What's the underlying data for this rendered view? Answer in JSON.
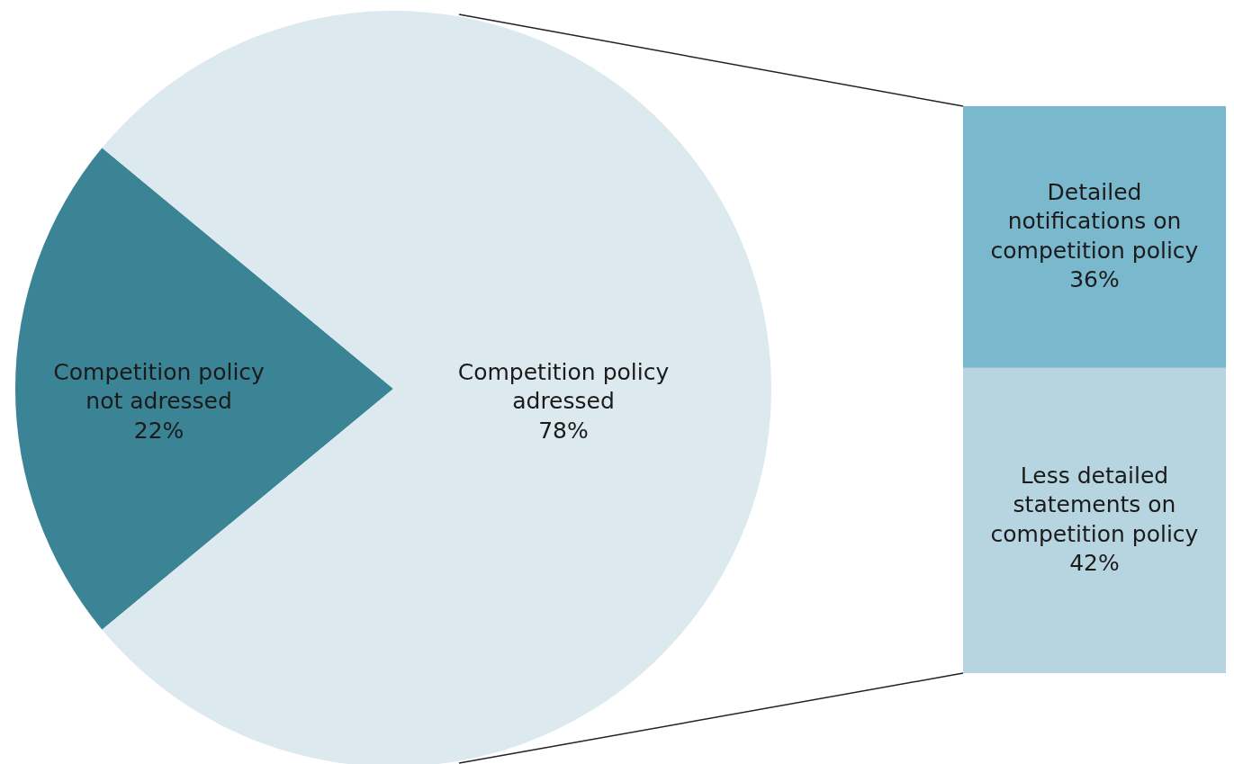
{
  "chart_data": [
    {
      "type": "pie",
      "categories": [
        "Competition policy not adressed",
        "Competition policy adressed"
      ],
      "values": [
        22,
        78
      ],
      "colors": [
        "#3a8496",
        "#dce9ef"
      ],
      "value_labels": [
        "22%",
        "78%"
      ]
    },
    {
      "type": "bar",
      "stacked": true,
      "categories": [
        null
      ],
      "series": [
        {
          "name": "Less detailed statements on competition policy",
          "color": "#b7d5e0",
          "values": [
            42
          ],
          "value_labels": [
            "42%"
          ]
        },
        {
          "name": "Detailed notifications on competition policy",
          "color": "#7ab8ce",
          "values": [
            36
          ],
          "value_labels": [
            "36%"
          ]
        }
      ]
    }
  ]
}
